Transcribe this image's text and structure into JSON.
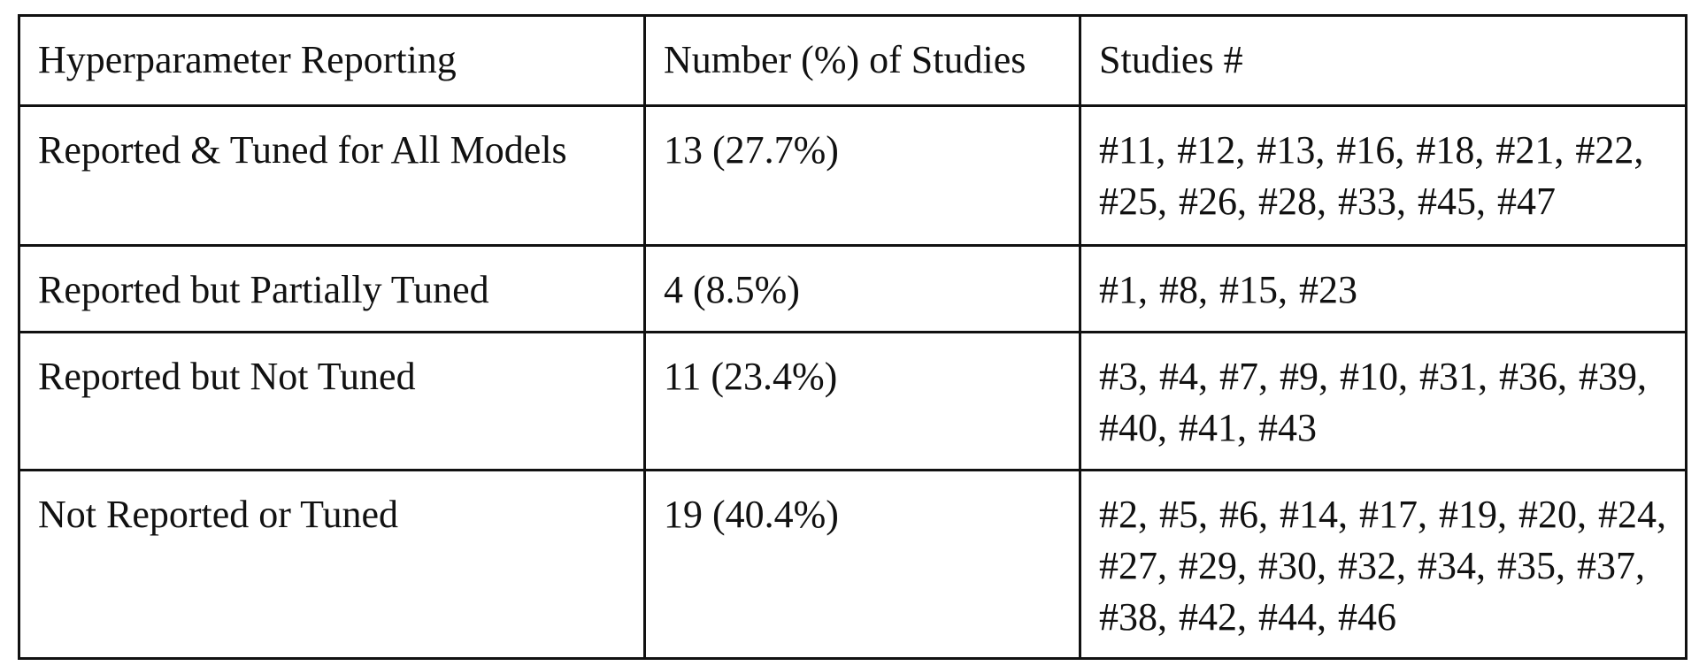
{
  "table": {
    "header": {
      "col1": "Hyperparameter Reporting",
      "col2": "Number (%) of Studies",
      "col3": "Studies #"
    },
    "rows": [
      {
        "category": "Reported & Tuned for All Models",
        "count": "13 (27.7%)",
        "studies": "#11, #12, #13, #16, #18, #21, #22, #25, #26, #28, #33, #45, #47"
      },
      {
        "category": "Reported but Partially Tuned",
        "count": "4 (8.5%)",
        "studies": "#1, #8, #15, #23"
      },
      {
        "category": "Reported but Not Tuned",
        "count": "11 (23.4%)",
        "studies": "#3, #4, #7, #9, #10, #31, #36, #39, #40, #41, #43"
      },
      {
        "category": "Not Reported or Tuned",
        "count": "19 (40.4%)",
        "studies": "#2, #5, #6, #14, #17, #19, #20, #24, #27, #29, #30, #32, #34, #35, #37, #38, #42, #44, #46"
      }
    ]
  }
}
